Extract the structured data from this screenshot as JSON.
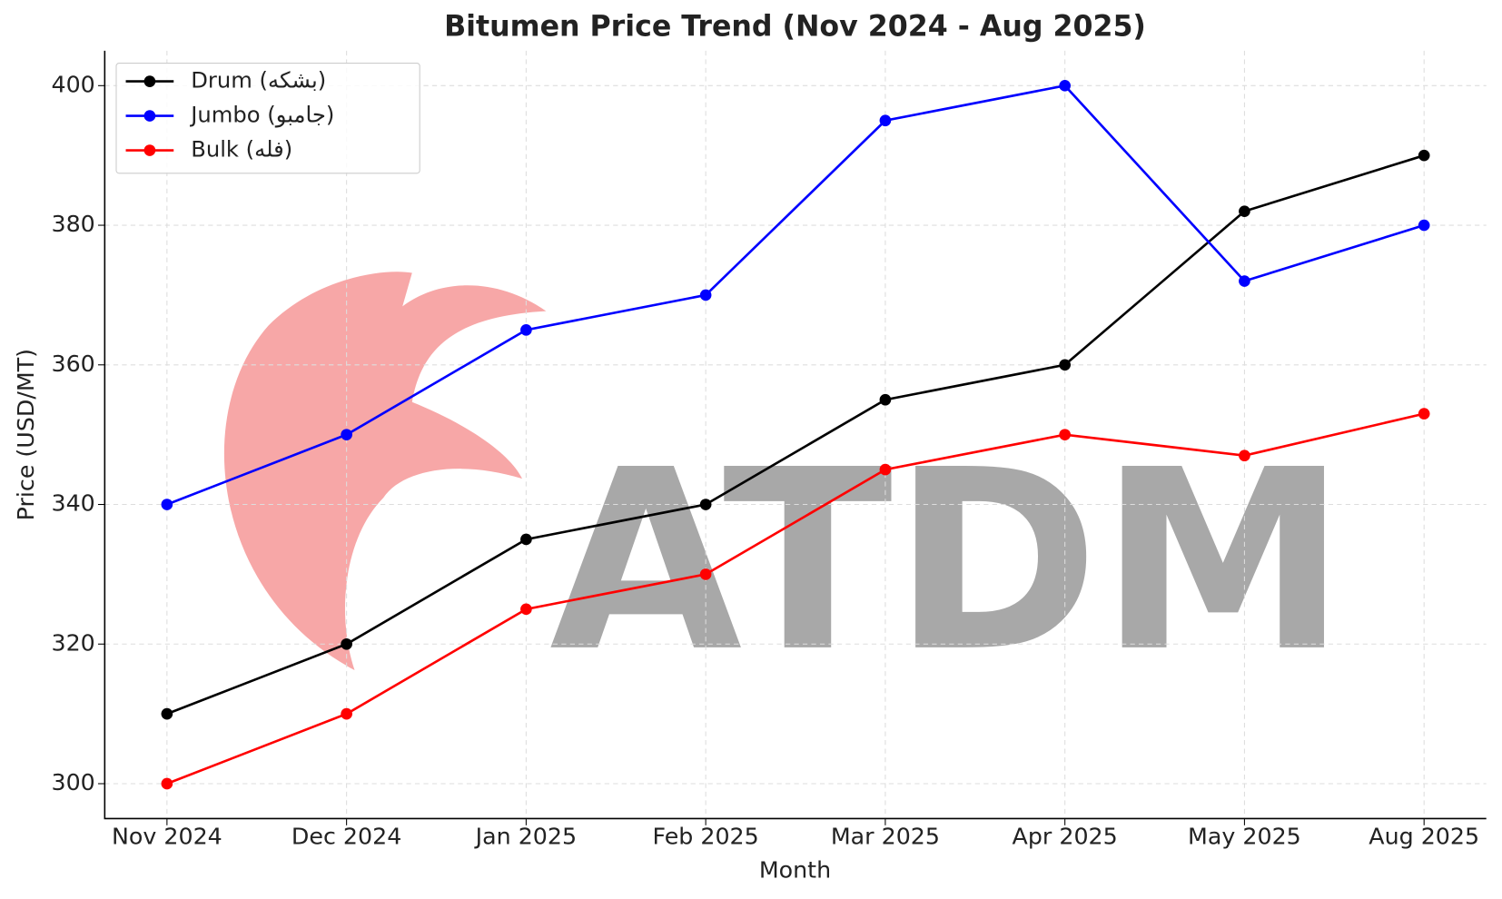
{
  "chart_data": {
    "type": "line",
    "title": "Bitumen Price Trend (Nov 2024 - Aug 2025)",
    "x_label": "Month",
    "y_label": "Price (USD/MT)",
    "watermark": "ATDM",
    "categories": [
      "Nov 2024",
      "Dec 2024",
      "Jan 2025",
      "Feb 2025",
      "Mar 2025",
      "Apr 2025",
      "May 2025",
      "Aug 2025"
    ],
    "series": [
      {
        "name": "Drum (بشکه)",
        "color": "#000000",
        "values": [
          310,
          320,
          335,
          340,
          355,
          360,
          382,
          390
        ]
      },
      {
        "name": "Jumbo (جامبو)",
        "color": "#0000ff",
        "values": [
          340,
          350,
          365,
          370,
          395,
          400,
          372,
          380
        ]
      },
      {
        "name": "Bulk (فله)",
        "color": "#ff0000",
        "values": [
          300,
          310,
          325,
          330,
          345,
          350,
          347,
          353
        ]
      }
    ],
    "ylim": [
      295,
      405
    ],
    "yticks": [
      300,
      320,
      340,
      360,
      380,
      400
    ],
    "grid": true,
    "legend": "upper-left"
  }
}
